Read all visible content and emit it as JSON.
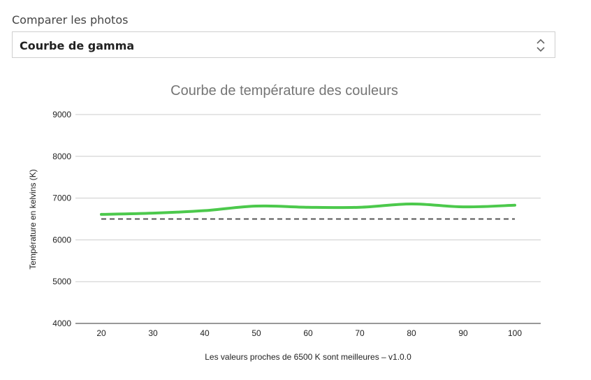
{
  "compare": {
    "label": "Comparer les photos",
    "selected": "Courbe de gamma"
  },
  "colors": {
    "series": "#4cc94c",
    "reference": "#555555",
    "grid": "#cccccc"
  },
  "chart_data": {
    "type": "line",
    "title": "Courbe de température des couleurs",
    "xlabel": "Les valeurs proches de 6500 K sont meilleures – v1.0.0",
    "ylabel": "Température en kelvins (K)",
    "x": [
      20,
      30,
      40,
      50,
      60,
      70,
      80,
      90,
      100
    ],
    "xticks": [
      "20",
      "30",
      "40",
      "50",
      "60",
      "70",
      "80",
      "90",
      "100"
    ],
    "xlim": [
      15,
      105
    ],
    "ylim": [
      4000,
      9000
    ],
    "yticks": [
      "4000",
      "5000",
      "6000",
      "7000",
      "8000",
      "9000"
    ],
    "grid": true,
    "series": [
      {
        "values": [
          6610,
          6640,
          6700,
          6810,
          6780,
          6780,
          6860,
          6790,
          6830
        ]
      },
      {
        "values": [
          6500,
          6500,
          6500,
          6500,
          6500,
          6500,
          6500,
          6500,
          6500
        ],
        "style": "dashed"
      }
    ]
  }
}
